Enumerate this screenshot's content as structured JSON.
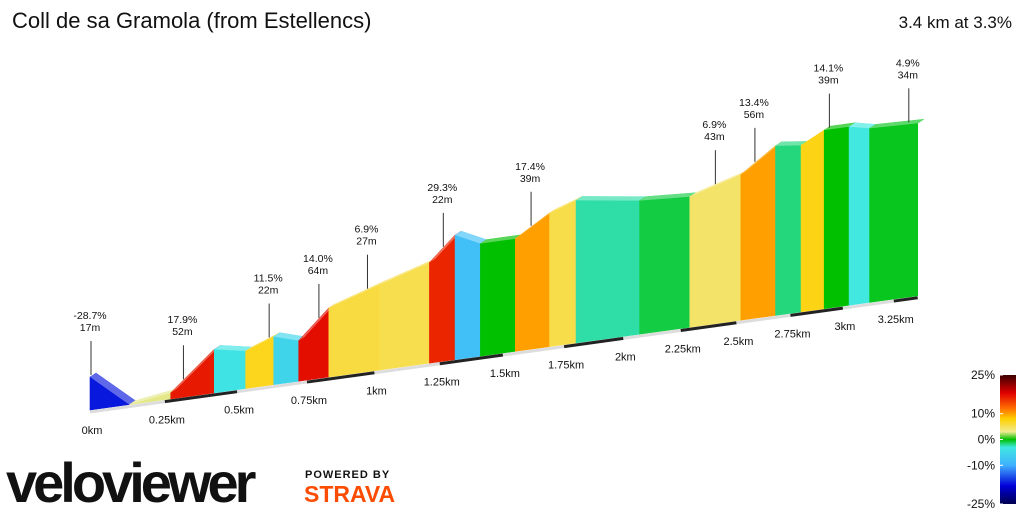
{
  "chart_data": {
    "type": "profile",
    "title": "Coll de sa Gramola (from Estellencs)",
    "summary": "3.4 km at 3.3%",
    "x": [
      0,
      0.13,
      0.27,
      0.42,
      0.53,
      0.63,
      0.72,
      0.83,
      1.02,
      1.21,
      1.31,
      1.41,
      1.55,
      1.69,
      1.8,
      2.07,
      2.29,
      2.52,
      2.68,
      2.8,
      2.91,
      3.03,
      3.13,
      3.37
    ],
    "values": [
      22,
      0,
      4,
      29,
      25,
      32,
      27,
      46,
      57,
      67,
      83,
      75,
      75,
      89,
      95,
      89,
      87,
      97,
      113,
      111,
      119,
      119,
      116,
      115
    ],
    "xticks": [
      {
        "value": 0,
        "label": "0km"
      },
      {
        "value": 0.25,
        "label": "0.25km"
      },
      {
        "value": 0.5,
        "label": "0.5km"
      },
      {
        "value": 0.75,
        "label": "0.75km"
      },
      {
        "value": 1,
        "label": "1km"
      },
      {
        "value": 1.25,
        "label": "1.25km"
      },
      {
        "value": 1.5,
        "label": "1.5km"
      },
      {
        "value": 1.75,
        "label": "1.75km"
      },
      {
        "value": 2,
        "label": "2km"
      },
      {
        "value": 2.25,
        "label": "2.25km"
      },
      {
        "value": 2.5,
        "label": "2.5km"
      },
      {
        "value": 2.75,
        "label": "2.75km"
      },
      {
        "value": 3,
        "label": "3km"
      },
      {
        "value": 3.25,
        "label": "3.25km"
      }
    ],
    "annotations": [
      {
        "x": 0,
        "gradient": "-28.7%",
        "length": "17m"
      },
      {
        "x": 0.31,
        "gradient": "17.9%",
        "length": "52m"
      },
      {
        "x": 0.61,
        "gradient": "11.5%",
        "length": "22m"
      },
      {
        "x": 0.79,
        "gradient": "14.0%",
        "length": "64m"
      },
      {
        "x": 0.97,
        "gradient": "6.9%",
        "length": "27m"
      },
      {
        "x": 1.26,
        "gradient": "29.3%",
        "length": "22m"
      },
      {
        "x": 1.61,
        "gradient": "17.4%",
        "length": "39m"
      },
      {
        "x": 2.4,
        "gradient": "6.9%",
        "length": "43m"
      },
      {
        "x": 2.58,
        "gradient": "13.4%",
        "length": "56m"
      },
      {
        "x": 2.93,
        "gradient": "14.1%",
        "length": "39m"
      },
      {
        "x": 3.32,
        "gradient": "4.9%",
        "length": "34m"
      }
    ],
    "colorscale": {
      "stops": [
        [
          25,
          "#3a0000"
        ],
        [
          18,
          "#e00000"
        ],
        [
          12,
          "#ff7000"
        ],
        [
          8,
          "#ffd000"
        ],
        [
          3,
          "#f0ea90"
        ],
        [
          0,
          "#00c000"
        ],
        [
          -3,
          "#40e8e0"
        ],
        [
          -10,
          "#40b0ff"
        ],
        [
          -18,
          "#0000d8"
        ],
        [
          -25,
          "#000050"
        ]
      ],
      "ticks": [
        {
          "value": 25,
          "label": "25%"
        },
        {
          "value": 10,
          "label": "10%"
        },
        {
          "value": 0,
          "label": "0%"
        },
        {
          "value": -10,
          "label": "-10%"
        },
        {
          "value": -25,
          "label": "-25%"
        }
      ]
    }
  },
  "branding": {
    "logo": "veloviewer",
    "powered_by": "POWERED BY",
    "partner": "STRAVA"
  }
}
